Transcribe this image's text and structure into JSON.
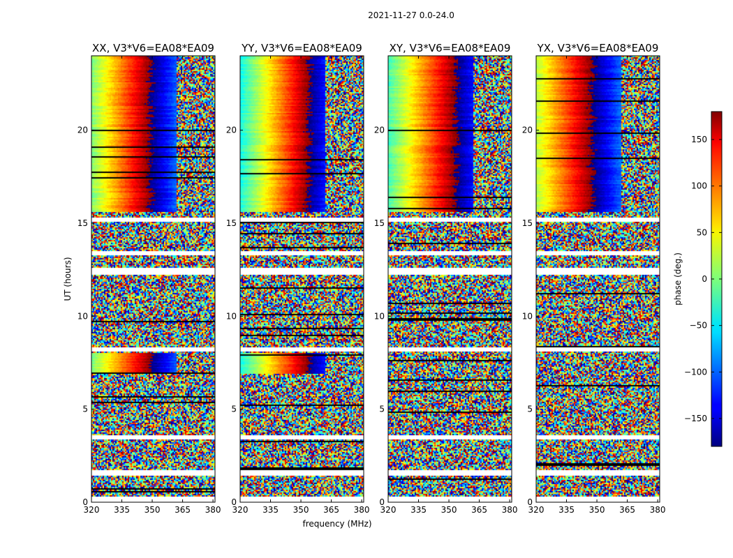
{
  "chart_data": {
    "type": "heatmap",
    "suptitle": "2021-11-27 0.0-24.0",
    "xlabel": "frequency (MHz)",
    "ylabel": "UT (hours)",
    "xlim": [
      320,
      381
    ],
    "ylim": [
      0,
      24
    ],
    "xticks": [
      "320",
      "335",
      "350",
      "365",
      "380"
    ],
    "yticks": [
      "0",
      "5",
      "10",
      "15",
      "20"
    ],
    "colorbar": {
      "label": "phase (deg.)",
      "range": [
        -180,
        180
      ],
      "ticks": [
        "150",
        "100",
        "50",
        "0",
        "−50",
        "−100",
        "−150"
      ],
      "colormap": "jet"
    },
    "panels": [
      {
        "title": "XX, V3*V6=EA08*EA09",
        "phase_offset": 0,
        "phase_slope": 6.2,
        "coherent_hours": [
          [
            15.6,
            24
          ],
          [
            6.9,
            8.0
          ]
        ]
      },
      {
        "title": "YY, V3*V6=EA08*EA09",
        "phase_offset": -40,
        "phase_slope": 6.5,
        "coherent_hours": [
          [
            15.6,
            24
          ],
          [
            6.9,
            8.0
          ]
        ]
      },
      {
        "title": "XY, V3*V6=EA08*EA09",
        "phase_offset": -20,
        "phase_slope": 6.0,
        "coherent_hours": [
          [
            15.6,
            24
          ]
        ]
      },
      {
        "title": "YX, V3*V6=EA08*EA09",
        "phase_offset": 20,
        "phase_slope": 5.8,
        "coherent_hours": [
          [
            15.6,
            24
          ]
        ]
      }
    ],
    "blank_hours": [
      [
        0,
        0.3
      ],
      [
        1.4,
        1.7
      ],
      [
        3.4,
        3.6
      ],
      [
        8.1,
        8.3
      ],
      [
        12.2,
        12.6
      ],
      [
        13.3,
        13.5
      ],
      [
        15.1,
        15.3
      ]
    ]
  }
}
